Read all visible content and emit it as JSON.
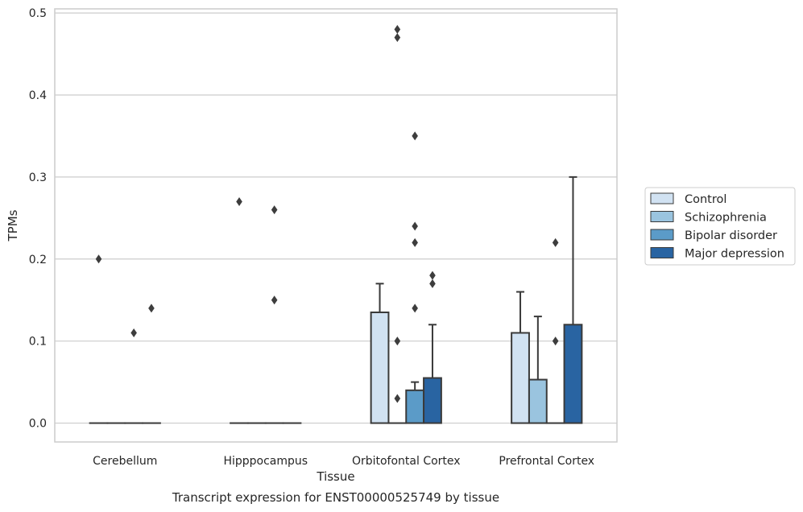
{
  "chart_data": {
    "type": "bar",
    "title": "Transcript expression for ENST00000525749 by tissue",
    "xlabel": "Tissue",
    "ylabel": "TPMs",
    "ylim": [
      -0.023,
      0.505
    ],
    "yticks": [
      0.0,
      0.1,
      0.2,
      0.3,
      0.4,
      0.5
    ],
    "ytick_labels": [
      "0.0",
      "0.1",
      "0.2",
      "0.3",
      "0.4",
      "0.5"
    ],
    "grid": true,
    "legend_position": "right",
    "categories": [
      "Cerebellum",
      "Hipppocampus",
      "Orbitofontal Cortex",
      "Prefrontal Cortex"
    ],
    "series": [
      {
        "name": "Control",
        "color": "#d1e2f2",
        "values": [
          0.0,
          0.0,
          0.135,
          0.11
        ],
        "error_upper": [
          0.0,
          0.0,
          0.17,
          0.16
        ],
        "outliers": [
          [
            0.2
          ],
          [
            0.27
          ],
          [],
          []
        ]
      },
      {
        "name": "Schizophrenia",
        "color": "#9ac4df",
        "values": [
          0.0,
          0.0,
          0.0,
          0.053
        ],
        "error_upper": [
          0.0,
          0.0,
          0.0,
          0.13
        ],
        "outliers": [
          [],
          [],
          [
            0.48,
            0.47,
            0.1,
            0.03
          ],
          []
        ]
      },
      {
        "name": "Bipolar disorder",
        "color": "#5b9bc8",
        "values": [
          0.0,
          0.0,
          0.04,
          0.0
        ],
        "error_upper": [
          0.0,
          0.0,
          0.05,
          0.0
        ],
        "outliers": [
          [
            0.11
          ],
          [
            0.26,
            0.15
          ],
          [
            0.24,
            0.35,
            0.22,
            0.14
          ],
          [
            0.22,
            0.1
          ]
        ]
      },
      {
        "name": "Major depression",
        "color": "#2964a2",
        "values": [
          0.0,
          0.0,
          0.055,
          0.12
        ],
        "error_upper": [
          0.0,
          0.0,
          0.12,
          0.3
        ],
        "outliers": [
          [
            0.14
          ],
          [],
          [
            0.18,
            0.17
          ],
          []
        ]
      }
    ]
  }
}
